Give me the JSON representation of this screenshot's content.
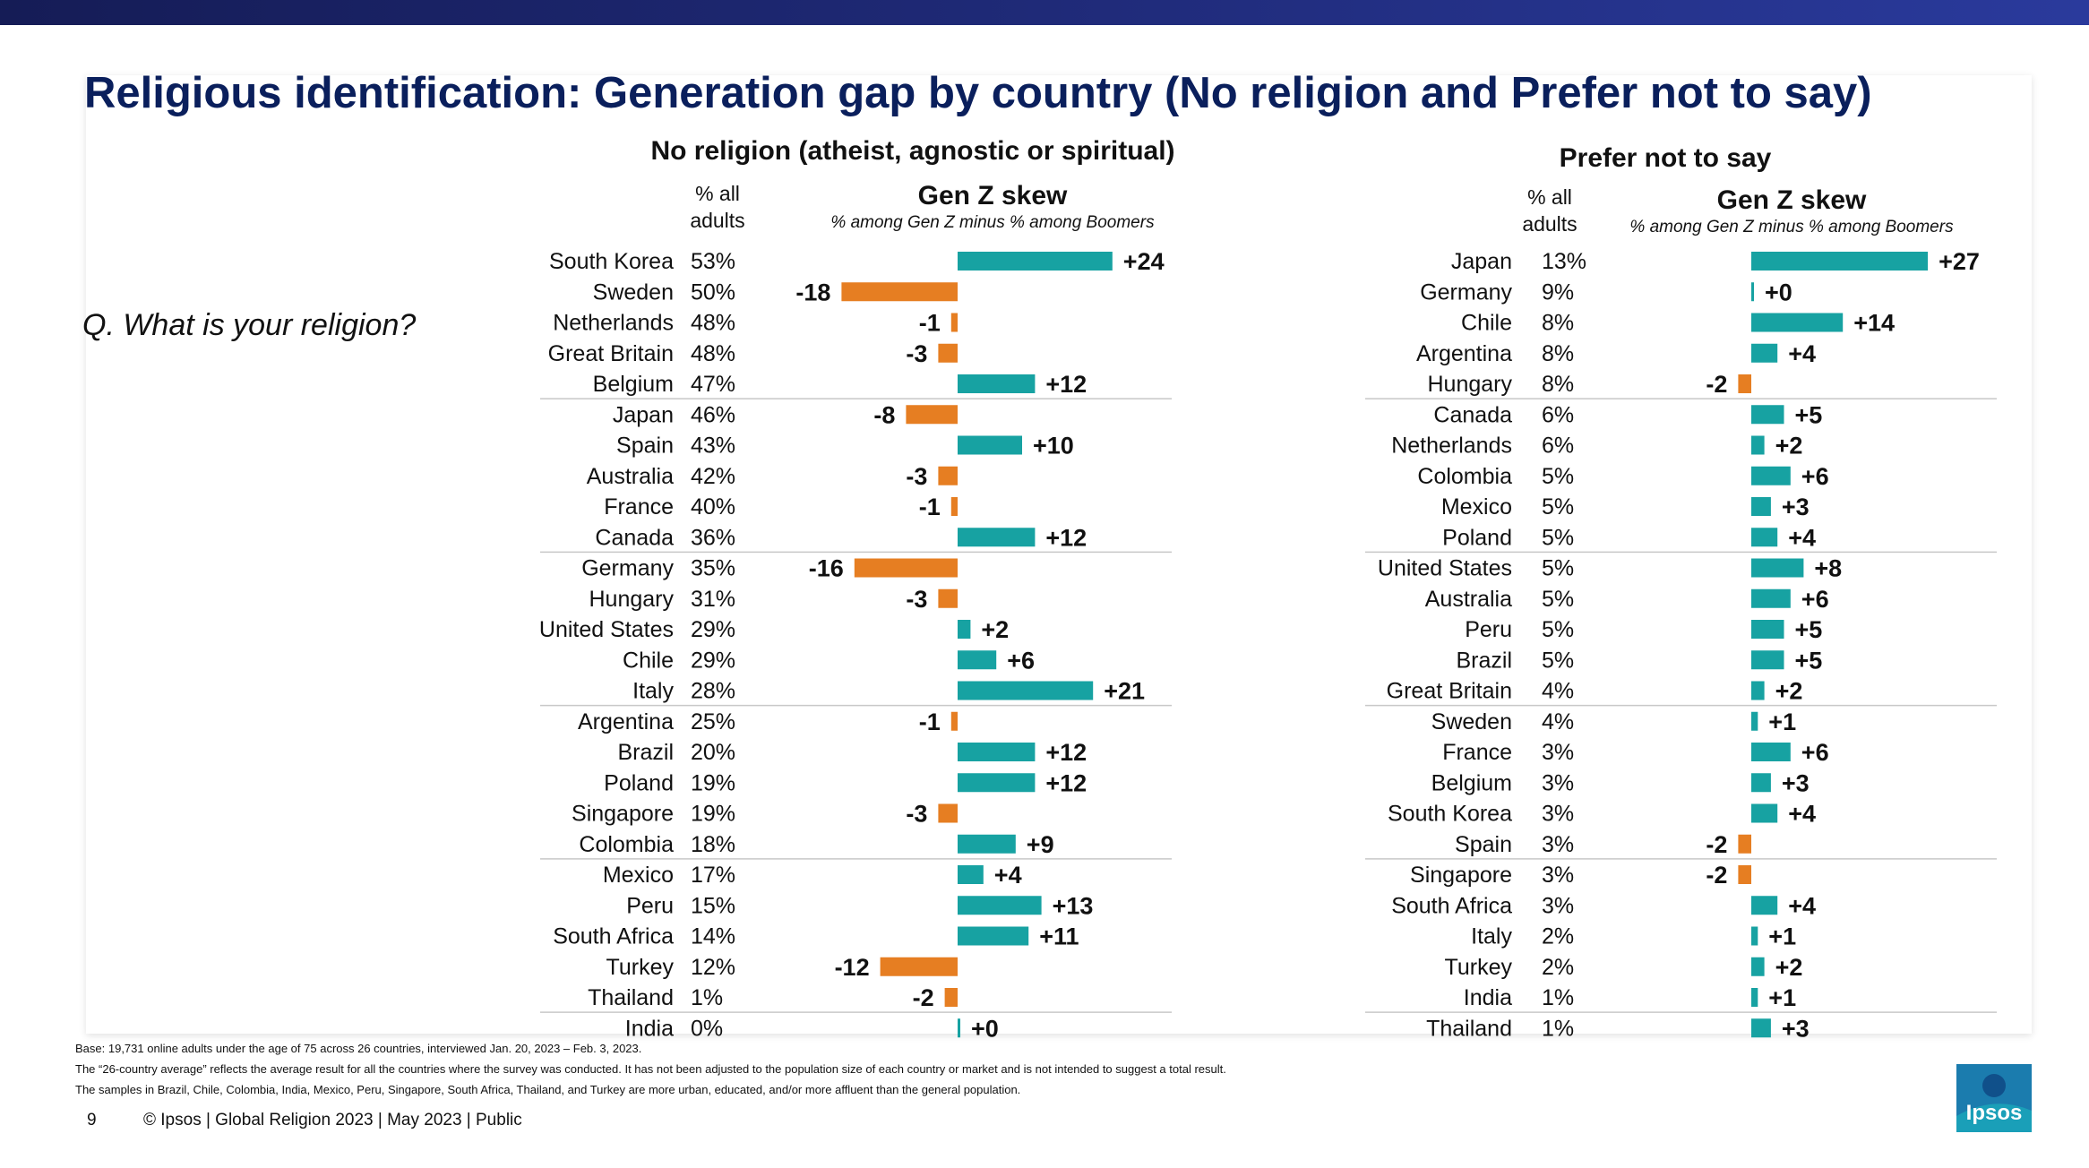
{
  "title": "Religious identification: Generation gap by country (No religion and Prefer not to say)",
  "question": "Q. What is your religion?",
  "colors": {
    "positive": "#17a2a2",
    "negative": "#e67e22",
    "title": "#0a1f5c"
  },
  "left_section": {
    "title": "No religion (atheist, agnostic or spiritual)",
    "col_header_line1": "% all",
    "col_header_line2": "adults",
    "skew_title": "Gen Z skew",
    "skew_subtitle": "% among Gen Z minus % among Boomers"
  },
  "right_section": {
    "title": "Prefer not to say",
    "col_header_line1": "% all",
    "col_header_line2": "adults",
    "skew_title": "Gen Z skew",
    "skew_subtitle": "% among Gen Z minus % among Boomers"
  },
  "chart_data": [
    {
      "type": "bar",
      "orientation": "horizontal-diverging",
      "title": "No religion (atheist, agnostic or spiritual)",
      "categories": [
        "South Korea",
        "Sweden",
        "Netherlands",
        "Great Britain",
        "Belgium",
        "Japan",
        "Spain",
        "Australia",
        "France",
        "Canada",
        "Germany",
        "Hungary",
        "United States",
        "Chile",
        "Italy",
        "Argentina",
        "Brazil",
        "Poland",
        "Singapore",
        "Colombia",
        "Mexico",
        "Peru",
        "South Africa",
        "Turkey",
        "Thailand",
        "India"
      ],
      "pct_all_adults": [
        "53%",
        "50%",
        "48%",
        "48%",
        "47%",
        "46%",
        "43%",
        "42%",
        "40%",
        "36%",
        "35%",
        "31%",
        "29%",
        "29%",
        "28%",
        "25%",
        "20%",
        "19%",
        "19%",
        "18%",
        "17%",
        "15%",
        "14%",
        "12%",
        "1%",
        "0%"
      ],
      "values": [
        24,
        -18,
        -1,
        -3,
        12,
        -8,
        10,
        -3,
        -1,
        12,
        -16,
        -3,
        2,
        6,
        21,
        -1,
        12,
        12,
        -3,
        9,
        4,
        13,
        11,
        -12,
        -2,
        0
      ],
      "value_labels": [
        "+24",
        "-18",
        "-1",
        "-3",
        "+12",
        "-8",
        "+10",
        "-3",
        "-1",
        "+12",
        "-16",
        "-3",
        "+2",
        "+6",
        "+21",
        "-1",
        "+12",
        "+12",
        "-3",
        "+9",
        "+4",
        "+13",
        "+11",
        "-12",
        "-2",
        "+0"
      ]
    },
    {
      "type": "bar",
      "orientation": "horizontal-diverging",
      "title": "Prefer not to say",
      "categories": [
        "Japan",
        "Germany",
        "Chile",
        "Argentina",
        "Hungary",
        "Canada",
        "Netherlands",
        "Colombia",
        "Mexico",
        "Poland",
        "United States",
        "Australia",
        "Peru",
        "Brazil",
        "Great Britain",
        "Sweden",
        "France",
        "Belgium",
        "South Korea",
        "Spain",
        "Singapore",
        "South Africa",
        "Italy",
        "Turkey",
        "India",
        "Thailand"
      ],
      "pct_all_adults": [
        "13%",
        "9%",
        "8%",
        "8%",
        "8%",
        "6%",
        "6%",
        "5%",
        "5%",
        "5%",
        "5%",
        "5%",
        "5%",
        "5%",
        "4%",
        "4%",
        "3%",
        "3%",
        "3%",
        "3%",
        "3%",
        "3%",
        "2%",
        "2%",
        "1%",
        "1%"
      ],
      "values": [
        27,
        0,
        14,
        4,
        -2,
        5,
        2,
        6,
        3,
        4,
        8,
        6,
        5,
        5,
        2,
        1,
        6,
        3,
        4,
        -2,
        -2,
        4,
        1,
        2,
        1,
        3
      ],
      "value_labels": [
        "+27",
        "+0",
        "+14",
        "+4",
        "-2",
        "+5",
        "+2",
        "+6",
        "+3",
        "+4",
        "+8",
        "+6",
        "+5",
        "+5",
        "+2",
        "+1",
        "+6",
        "+3",
        "+4",
        "-2",
        "-2",
        "+4",
        "+1",
        "+2",
        "+1",
        "+3"
      ]
    }
  ],
  "footnotes": {
    "base": "Base: 19,731 online adults under the age of 75 across 26 countries, interviewed Jan. 20, 2023 – Feb. 3, 2023.",
    "average_note": "The “26-country average” reflects the average result for all the countries where the survey was conducted. It has not been adjusted to the population size of each country or market and is not intended to suggest a total result.",
    "samples_note": "The samples in Brazil, Chile, Colombia, India, Mexico, Peru, Singapore, South Africa, Thailand, and Turkey are more urban, educated, and/or more affluent than the general population."
  },
  "footer": {
    "page_number": "9",
    "copyright": "© Ipsos | Global Religion 2023 | May 2023 | Public",
    "logo_text": "Ipsos"
  }
}
